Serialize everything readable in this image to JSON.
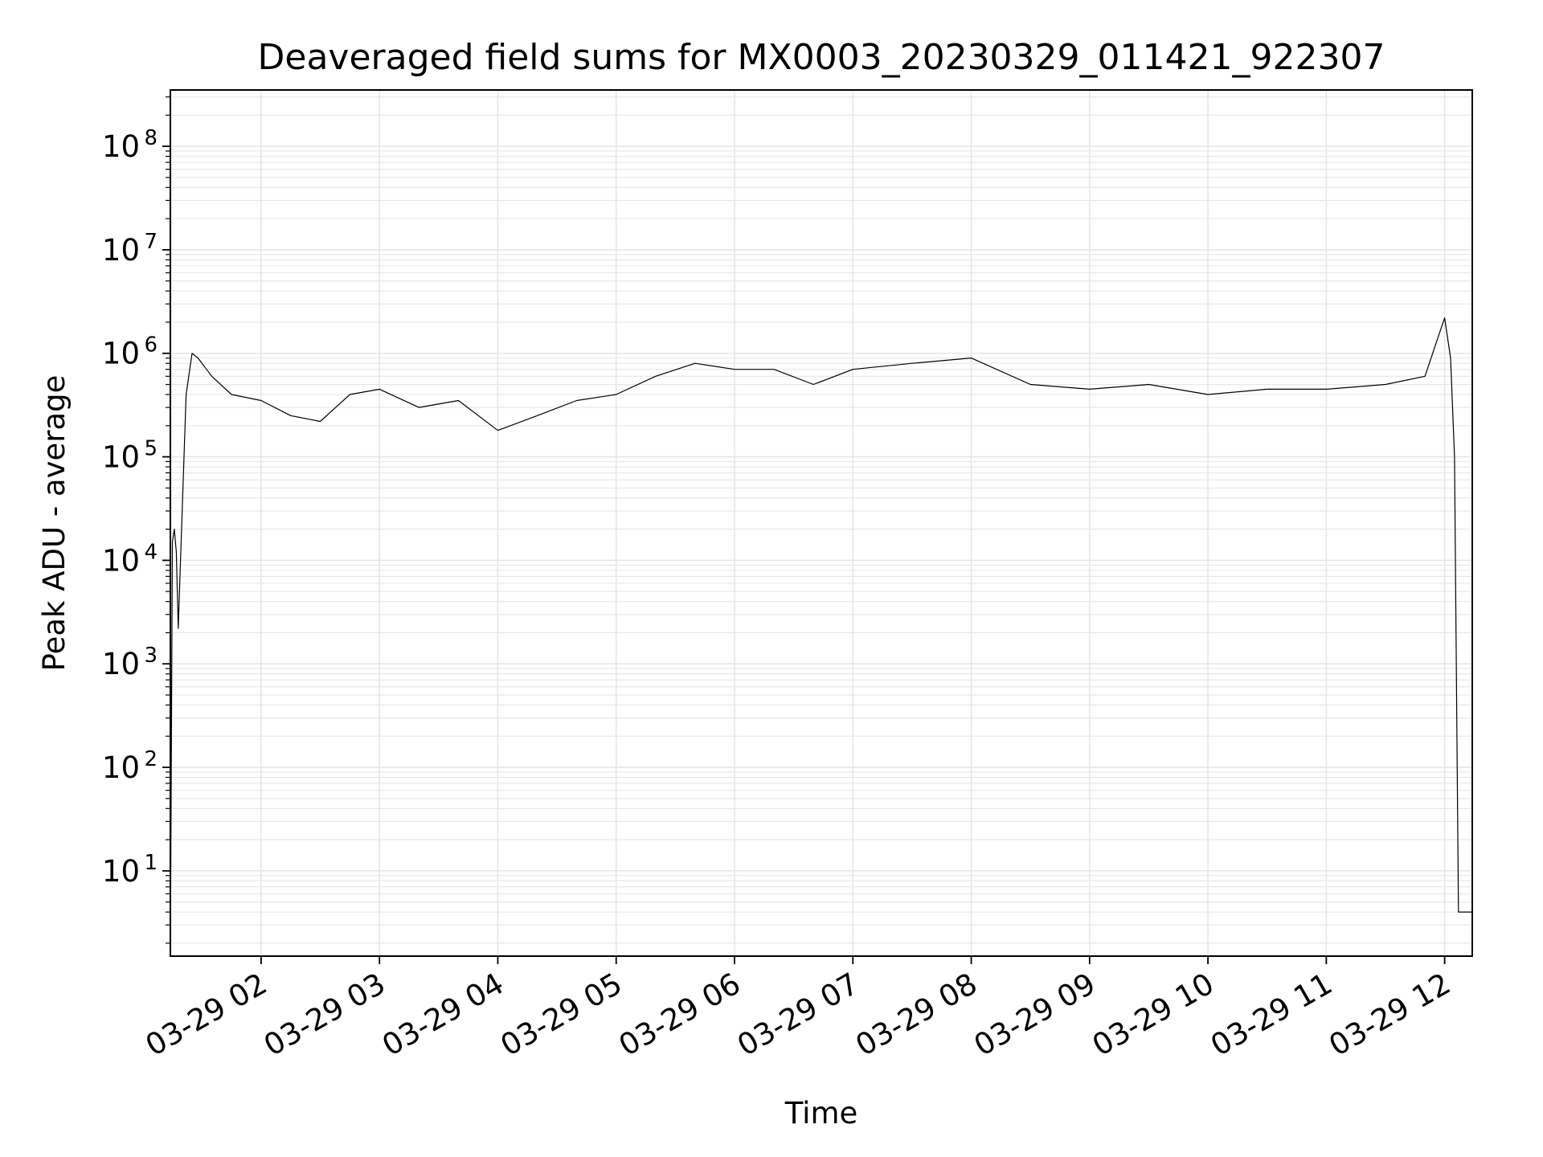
{
  "chart_data": {
    "type": "line",
    "title": "Deaveraged field sums for MX0003_20230329_011421_922307",
    "xlabel": "Time",
    "ylabel": "Peak ADU - average",
    "x_axis": {
      "ticks": [
        "03-29 02",
        "03-29 03",
        "03-29 04",
        "03-29 05",
        "03-29 06",
        "03-29 07",
        "03-29 08",
        "03-29 09",
        "03-29 10",
        "03-29 11",
        "03-29 12"
      ],
      "range": [
        "2023-03-29 01:14",
        "2023-03-29 12:14"
      ]
    },
    "y_axis": {
      "scale": "log",
      "range": [
        1.5,
        350000000
      ],
      "tick_labels": [
        {
          "base": "10",
          "exp": "1",
          "value": 10
        },
        {
          "base": "10",
          "exp": "2",
          "value": 100
        },
        {
          "base": "10",
          "exp": "3",
          "value": 1000
        },
        {
          "base": "10",
          "exp": "4",
          "value": 10000
        },
        {
          "base": "10",
          "exp": "5",
          "value": 100000
        },
        {
          "base": "10",
          "exp": "6",
          "value": 1000000
        },
        {
          "base": "10",
          "exp": "7",
          "value": 10000000
        },
        {
          "base": "10",
          "exp": "8",
          "value": 100000000
        }
      ]
    },
    "grid": true,
    "line_color": "#000000",
    "series": [
      {
        "x": [
          "2023-03-29 01:14",
          "2023-03-29 01:15",
          "2023-03-29 01:16",
          "2023-03-29 01:17",
          "2023-03-29 01:18",
          "2023-03-29 01:20",
          "2023-03-29 01:22",
          "2023-03-29 01:25",
          "2023-03-29 01:28",
          "2023-03-29 01:35",
          "2023-03-29 01:45",
          "2023-03-29 02:00",
          "2023-03-29 02:15",
          "2023-03-29 02:30",
          "2023-03-29 02:45",
          "2023-03-29 03:00",
          "2023-03-29 03:20",
          "2023-03-29 03:40",
          "2023-03-29 04:00",
          "2023-03-29 04:20",
          "2023-03-29 04:40",
          "2023-03-29 05:00",
          "2023-03-29 05:20",
          "2023-03-29 05:40",
          "2023-03-29 06:00",
          "2023-03-29 06:20",
          "2023-03-29 06:40",
          "2023-03-29 07:00",
          "2023-03-29 07:30",
          "2023-03-29 08:00",
          "2023-03-29 08:30",
          "2023-03-29 09:00",
          "2023-03-29 09:30",
          "2023-03-29 10:00",
          "2023-03-29 10:30",
          "2023-03-29 11:00",
          "2023-03-29 11:30",
          "2023-03-29 11:50",
          "2023-03-29 12:00",
          "2023-03-29 12:03",
          "2023-03-29 12:05",
          "2023-03-29 12:07",
          "2023-03-29 12:14"
        ],
        "y": [
          1.5,
          15000,
          20000,
          12000,
          2200,
          30000,
          400000,
          1000000,
          900000,
          600000,
          400000,
          350000,
          250000,
          220000,
          400000,
          450000,
          300000,
          350000,
          180000,
          250000,
          350000,
          400000,
          600000,
          800000,
          700000,
          700000,
          500000,
          700000,
          800000,
          900000,
          500000,
          450000,
          500000,
          400000,
          450000,
          450000,
          500000,
          600000,
          2200000,
          900000,
          100000,
          4,
          4
        ]
      }
    ]
  }
}
